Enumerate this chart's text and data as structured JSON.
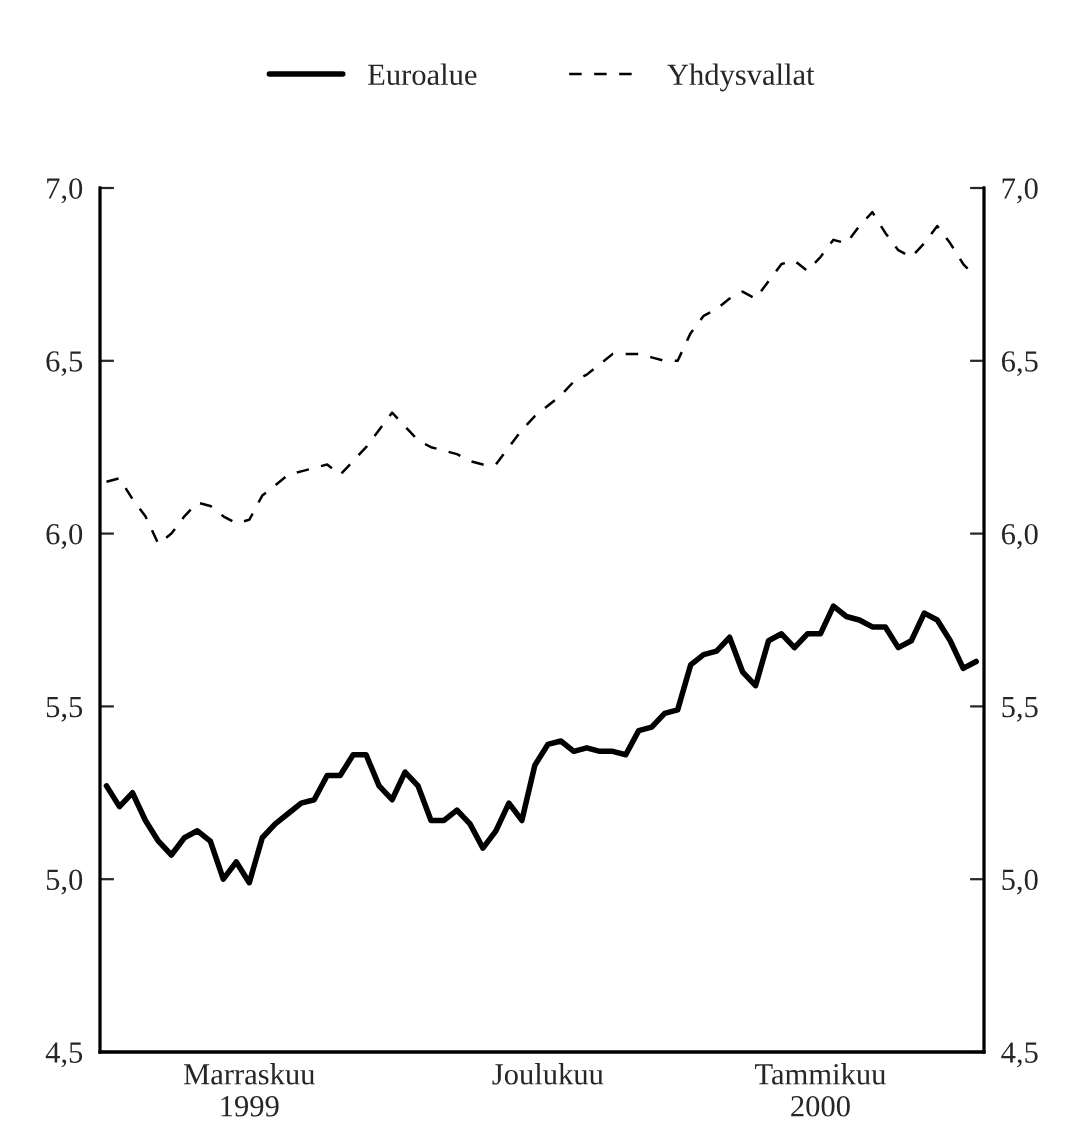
{
  "chart_data": {
    "type": "line",
    "categories": [
      null,
      null,
      null,
      null,
      null,
      null,
      null,
      null,
      null,
      null,
      null,
      "Marraskuu\n1999",
      null,
      null,
      null,
      null,
      null,
      null,
      null,
      null,
      null,
      null,
      null,
      null,
      null,
      null,
      null,
      null,
      null,
      null,
      null,
      null,
      null,
      null,
      "Joulukuu",
      null,
      null,
      null,
      null,
      null,
      null,
      null,
      null,
      null,
      null,
      null,
      null,
      null,
      null,
      null,
      null,
      null,
      null,
      null,
      null,
      "Tammikuu\n2000",
      null,
      null,
      null,
      null,
      null,
      null,
      null,
      null,
      null,
      null,
      null,
      null
    ],
    "ylim": [
      4.5,
      7.0
    ],
    "yticks": [
      {
        "value": 4.5,
        "label": "4,5"
      },
      {
        "value": 5.0,
        "label": "5,0"
      },
      {
        "value": 5.5,
        "label": "5,5"
      },
      {
        "value": 6.0,
        "label": "6,0"
      },
      {
        "value": 6.5,
        "label": "6,5"
      },
      {
        "value": 7.0,
        "label": "7,0"
      }
    ],
    "y2lim": [
      4.5,
      7.0
    ],
    "y2ticks": [
      {
        "value": 4.5,
        "label": "4,5"
      },
      {
        "value": 5.0,
        "label": "5,0"
      },
      {
        "value": 5.5,
        "label": "5,5"
      },
      {
        "value": 6.0,
        "label": "6,0"
      },
      {
        "value": 6.5,
        "label": "6,5"
      },
      {
        "value": 7.0,
        "label": "7,0"
      }
    ],
    "grid": false,
    "legend": "top",
    "series": [
      {
        "name": "Euroalue",
        "color": "#000000",
        "line_style": "solid",
        "values": [
          5.27,
          5.21,
          5.25,
          5.17,
          5.11,
          5.07,
          5.12,
          5.14,
          5.11,
          5.0,
          5.05,
          4.99,
          5.12,
          5.16,
          5.19,
          5.22,
          5.23,
          5.3,
          5.3,
          5.36,
          5.36,
          5.27,
          5.23,
          5.31,
          5.27,
          5.17,
          5.17,
          5.2,
          5.16,
          5.09,
          5.14,
          5.22,
          5.17,
          5.33,
          5.39,
          5.4,
          5.37,
          5.38,
          5.37,
          5.37,
          5.36,
          5.43,
          5.44,
          5.48,
          5.49,
          5.62,
          5.65,
          5.66,
          5.7,
          5.6,
          5.56,
          5.69,
          5.71,
          5.67,
          5.71,
          5.71,
          5.79,
          5.76,
          5.75,
          5.73,
          5.73,
          5.67,
          5.69,
          5.77,
          5.75,
          5.69,
          5.61,
          5.63
        ]
      },
      {
        "name": "Yhdysvallat",
        "color": "#000000",
        "line_style": "dashed",
        "values": [
          6.15,
          6.16,
          6.1,
          6.05,
          5.97,
          6.0,
          6.05,
          6.09,
          6.08,
          6.05,
          6.03,
          6.04,
          6.11,
          6.14,
          6.17,
          6.18,
          6.19,
          6.2,
          6.17,
          6.21,
          6.25,
          6.3,
          6.35,
          6.31,
          6.27,
          6.25,
          6.24,
          6.23,
          6.21,
          6.2,
          6.2,
          6.25,
          6.3,
          6.34,
          6.37,
          6.4,
          6.44,
          6.46,
          6.49,
          6.52,
          6.52,
          6.52,
          6.51,
          6.5,
          6.5,
          6.58,
          6.63,
          6.65,
          6.68,
          6.7,
          6.68,
          6.73,
          6.78,
          6.79,
          6.76,
          6.8,
          6.85,
          6.84,
          6.89,
          6.93,
          6.87,
          6.82,
          6.8,
          6.84,
          6.89,
          6.84,
          6.78,
          6.74
        ]
      }
    ]
  }
}
